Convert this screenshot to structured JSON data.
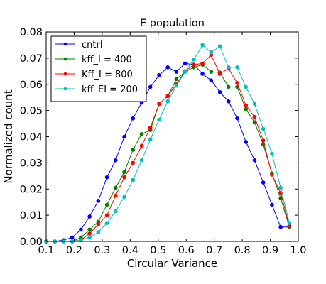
{
  "chart_data": {
    "type": "line",
    "title": "E population",
    "xlabel": "Circular Variance",
    "ylabel": "Normalized count",
    "xlim": [
      0.1,
      1.0
    ],
    "ylim": [
      0.0,
      0.08
    ],
    "xticks": [
      0.1,
      0.2,
      0.3,
      0.4,
      0.5,
      0.6,
      0.7,
      0.8,
      0.9,
      1.0
    ],
    "xtick_labels": [
      "0.1",
      "0.2",
      "0.3",
      "0.4",
      "0.5",
      "0.6",
      "0.7",
      "0.8",
      "0.9",
      "1.0"
    ],
    "yticks": [
      0.0,
      0.01,
      0.02,
      0.03,
      0.04,
      0.05,
      0.06,
      0.07,
      0.08
    ],
    "ytick_labels": [
      "0.00",
      "0.01",
      "0.02",
      "0.03",
      "0.04",
      "0.05",
      "0.06",
      "0.07",
      "0.08"
    ],
    "grid": false,
    "legend_position": "top-left",
    "x": [
      0.1,
      0.131,
      0.162,
      0.193,
      0.224,
      0.255,
      0.286,
      0.317,
      0.348,
      0.379,
      0.41,
      0.441,
      0.472,
      0.503,
      0.534,
      0.565,
      0.596,
      0.627,
      0.658,
      0.689,
      0.72,
      0.751,
      0.782,
      0.813,
      0.844,
      0.875,
      0.906,
      0.937,
      0.968
    ],
    "series": [
      {
        "name": "cntrl",
        "color": "#0000ff",
        "values": [
          0.0,
          0.0,
          0.0005,
          0.0015,
          0.0045,
          0.0095,
          0.0155,
          0.0245,
          0.031,
          0.04,
          0.047,
          0.053,
          0.059,
          0.0635,
          0.0665,
          0.0648,
          0.068,
          0.0675,
          0.064,
          0.0615,
          0.057,
          0.0535,
          0.047,
          0.038,
          0.031,
          0.0225,
          0.014,
          0.0055,
          0.0055
        ]
      },
      {
        "name": "kff_I = 400",
        "color": "#008000",
        "values": [
          0.0,
          0.0,
          0.0,
          0.0,
          0.0015,
          0.0045,
          0.0075,
          0.014,
          0.0205,
          0.0265,
          0.035,
          0.041,
          0.0425,
          0.0525,
          0.0555,
          0.062,
          0.0648,
          0.0665,
          0.0675,
          0.0648,
          0.0645,
          0.059,
          0.059,
          0.0505,
          0.0455,
          0.037,
          0.026,
          0.0165,
          0.0055
        ]
      },
      {
        "name": "Kff_I = 800",
        "color": "#ff0000",
        "values": [
          0.0,
          0.0,
          0.0,
          0.0,
          0.0005,
          0.003,
          0.0065,
          0.01,
          0.0175,
          0.0245,
          0.03,
          0.0365,
          0.0435,
          0.0525,
          0.0555,
          0.06,
          0.065,
          0.0675,
          0.068,
          0.0712,
          0.064,
          0.066,
          0.0605,
          0.052,
          0.0475,
          0.0385,
          0.0255,
          0.0185,
          0.006
        ]
      },
      {
        "name": "kff_EI = 200",
        "color": "#00bfbf",
        "values": [
          0.0,
          0.0,
          0.0,
          0.0,
          0.0005,
          0.0015,
          0.0035,
          0.007,
          0.0115,
          0.017,
          0.0235,
          0.031,
          0.039,
          0.0465,
          0.0535,
          0.0595,
          0.0648,
          0.0695,
          0.075,
          0.0722,
          0.0745,
          0.0665,
          0.0665,
          0.059,
          0.0525,
          0.043,
          0.0335,
          0.0205,
          0.007
        ]
      }
    ]
  }
}
